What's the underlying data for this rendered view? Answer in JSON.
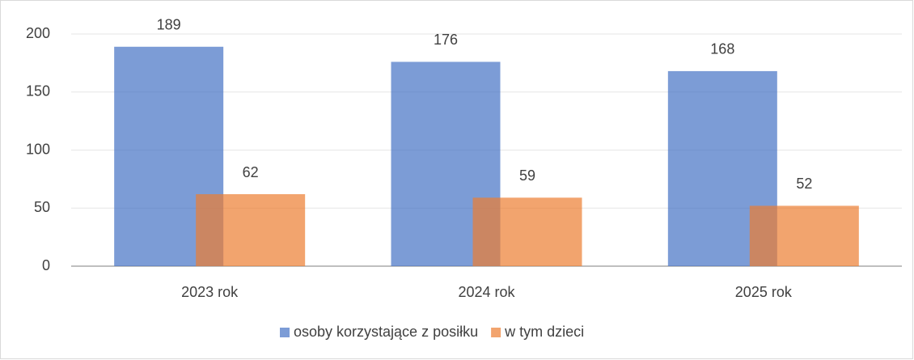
{
  "chart_data": {
    "type": "bar",
    "categories": [
      "2023 rok",
      "2024 rok",
      "2025 rok"
    ],
    "series": [
      {
        "name": "osoby korzystające z posiłku",
        "color": "#4472c4",
        "values": [
          189,
          176,
          168
        ]
      },
      {
        "name": "w tym dzieci",
        "color": "#ed7d31",
        "values": [
          62,
          59,
          52
        ]
      }
    ],
    "ylim": [
      0,
      200
    ],
    "yticks": [
      0,
      50,
      100,
      150,
      200
    ],
    "grid": true,
    "legend": "bottom"
  }
}
